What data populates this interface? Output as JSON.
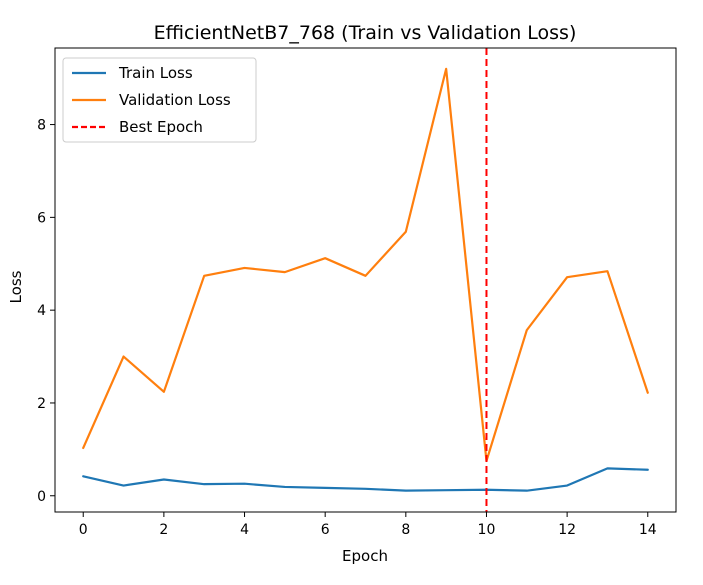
{
  "chart_data": {
    "type": "line",
    "title": "EfficientNetB7_768 (Train vs Validation Loss)",
    "xlabel": "Epoch",
    "ylabel": "Loss",
    "x": [
      0,
      1,
      2,
      3,
      4,
      5,
      6,
      7,
      8,
      9,
      10,
      11,
      12,
      13,
      14
    ],
    "xlim": [
      -0.7,
      14.7
    ],
    "ylim": [
      -0.35,
      9.65
    ],
    "xticks": [
      0,
      2,
      4,
      6,
      8,
      10,
      12,
      14
    ],
    "yticks": [
      0,
      2,
      4,
      6,
      8
    ],
    "series": [
      {
        "name": "Train Loss",
        "color": "#1f77b4",
        "values": [
          0.42,
          0.22,
          0.35,
          0.25,
          0.26,
          0.19,
          0.17,
          0.15,
          0.11,
          0.12,
          0.13,
          0.11,
          0.22,
          0.59,
          0.56
        ]
      },
      {
        "name": "Validation Loss",
        "color": "#ff7f0e",
        "values": [
          1.03,
          3.0,
          2.24,
          4.74,
          4.91,
          4.82,
          5.12,
          4.74,
          5.69,
          9.2,
          0.75,
          3.57,
          4.71,
          4.84,
          2.22
        ]
      }
    ],
    "best_epoch": {
      "name": "Best Epoch",
      "x": 10,
      "color": "#ff0000",
      "style": "dashed"
    },
    "legend": "top-left",
    "grid": false
  }
}
